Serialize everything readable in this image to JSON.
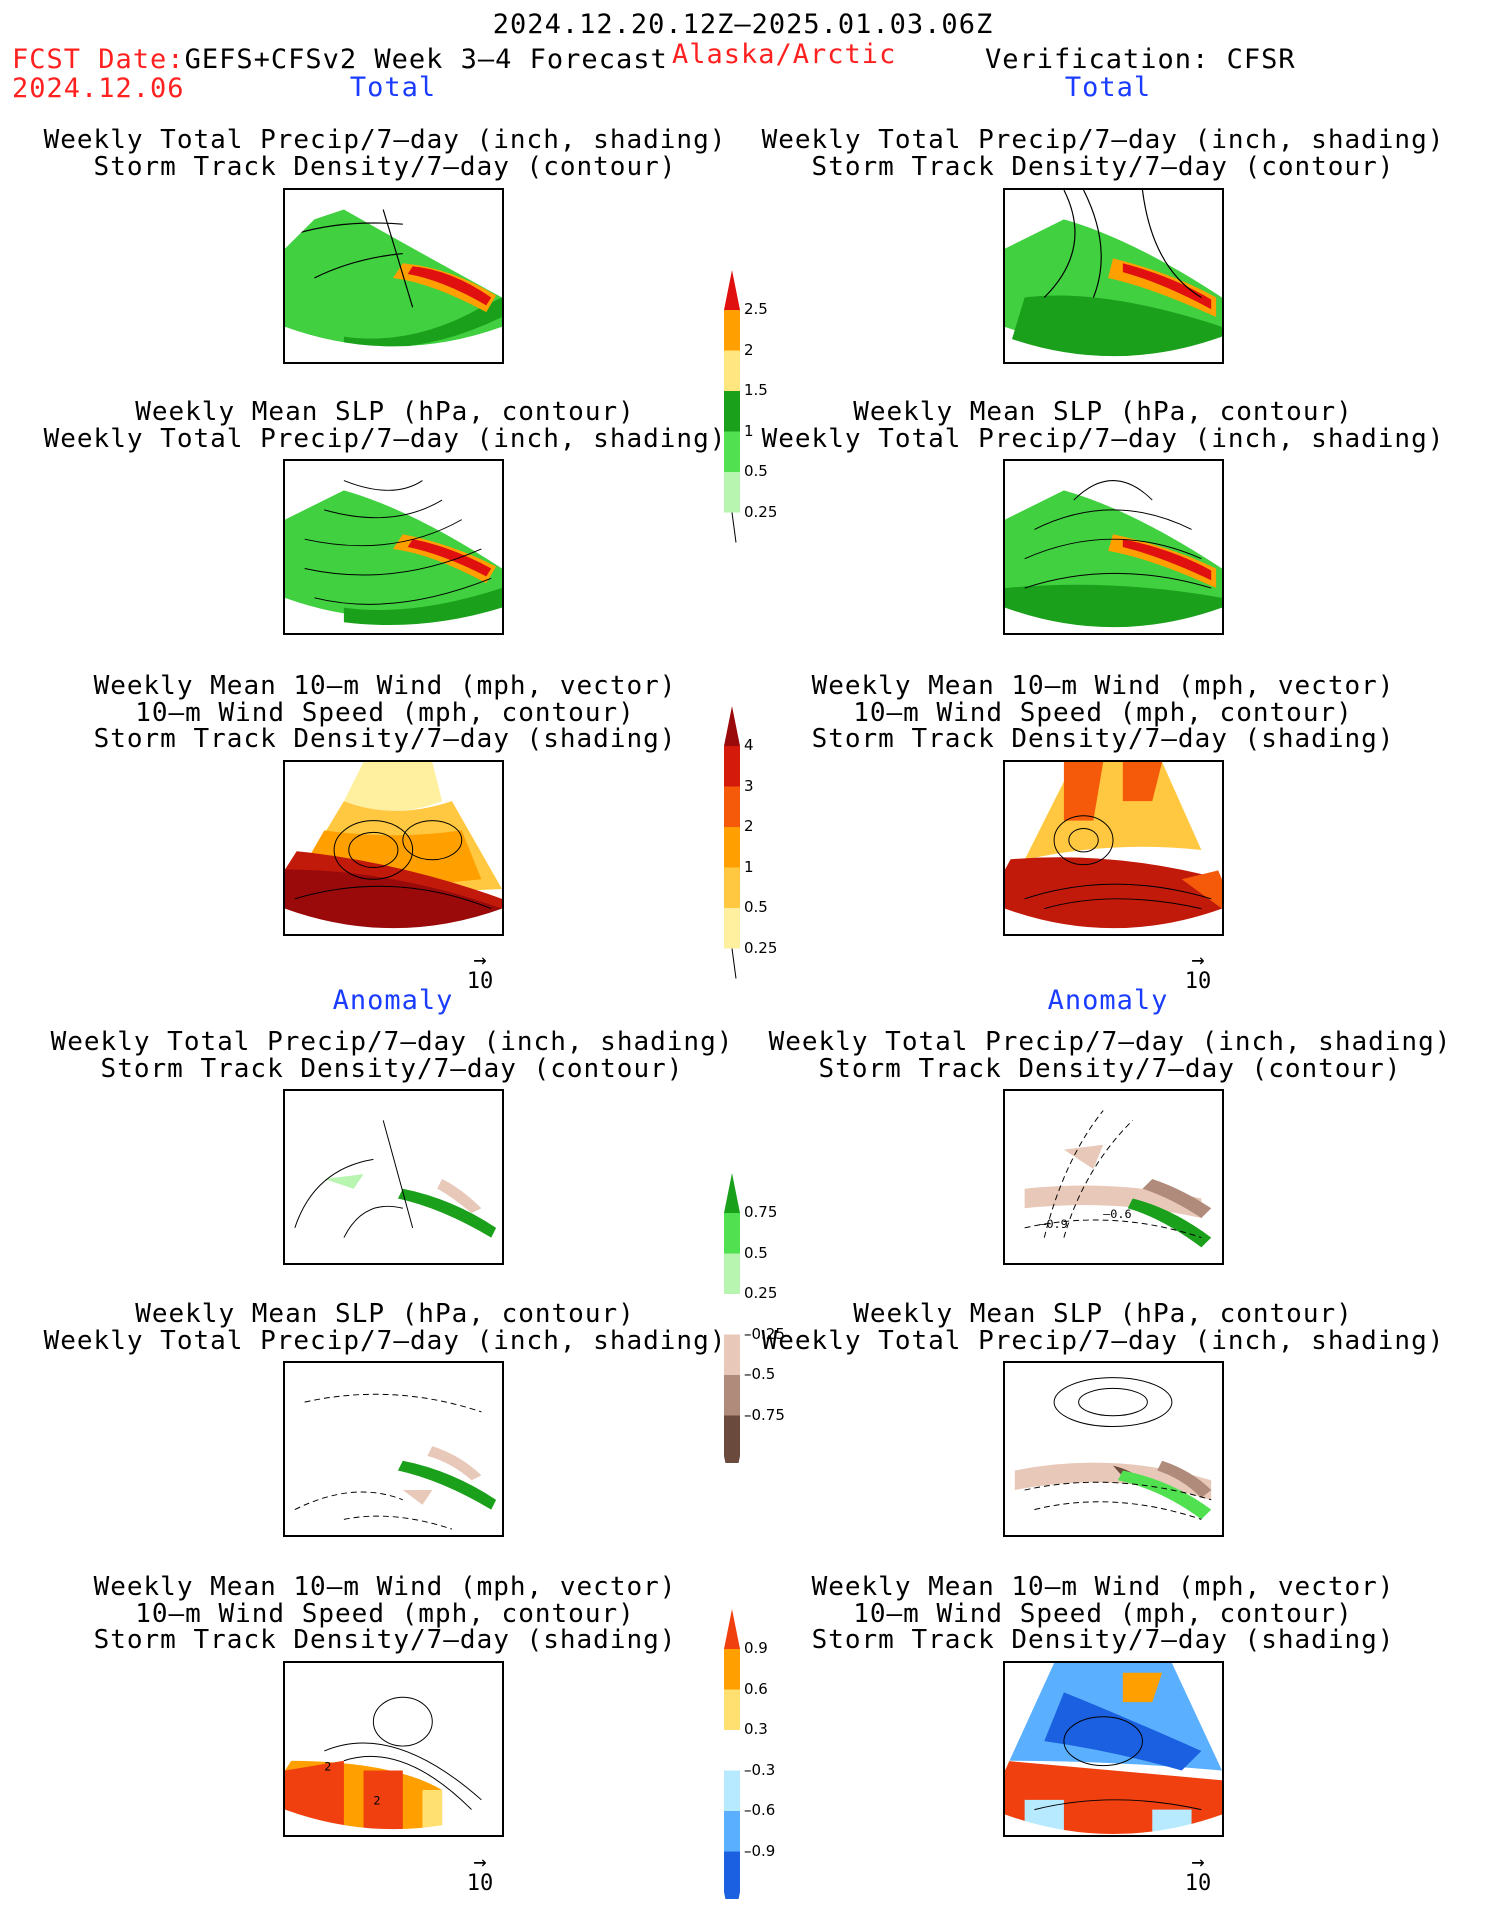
{
  "header": {
    "date_range": "2024.12.20.12Z–2025.01.03.06Z",
    "fcst_prefix": "FCST Date:",
    "fcst_model": "GEFS+CFSv2 Week 3–4 Forecast",
    "fcst_date": "2024.12.06",
    "region": "Alaska/Arctic",
    "verification": "Verification: CFSR"
  },
  "sections": {
    "total": "Total",
    "anomaly": "Anomaly"
  },
  "panels": {
    "precip_storm": [
      "Weekly Total Precip/7–day (inch, shading)",
      "Storm Track Density/7–day (contour)"
    ],
    "slp_precip": [
      "Weekly Mean SLP (hPa, contour)",
      "Weekly Total Precip/7–day (inch, shading)"
    ],
    "wind_storm": [
      "Weekly Mean 10–m Wind (mph, vector)",
      "10–m Wind Speed (mph, contour)",
      "Storm Track Density/7–day (shading)"
    ]
  },
  "vector_ref": "10",
  "contour_labels": {
    "anom_precip_a": "–0.9",
    "anom_precip_b": "–0.6",
    "wind_anom_a": "2",
    "wind_anom_b": "2"
  },
  "colorbars": {
    "precip_total": {
      "labels": [
        "2.5",
        "2",
        "1.5",
        "1",
        "0.5",
        "0.25"
      ],
      "colors": [
        "#e01010",
        "#ffa000",
        "#ffe680",
        "#1aa01a",
        "#50e050",
        "#b8f5b0"
      ]
    },
    "storm_total": {
      "labels": [
        "4",
        "3",
        "2",
        "1",
        "0.5",
        "0.25"
      ],
      "colors": [
        "#9a0a0a",
        "#d41a0a",
        "#f55a0a",
        "#ffa000",
        "#ffc840",
        "#fff0a0"
      ]
    },
    "precip_anom": {
      "labels": [
        "0.75",
        "0.5",
        "0.25",
        "–0.25",
        "–0.5",
        "–0.75"
      ],
      "colors": [
        "#1aa01a",
        "#50e050",
        "#b8f5b0",
        "#ffffff",
        "#e8c8b8",
        "#b08a7a",
        "#6b4a3e"
      ]
    },
    "wind_anom": {
      "labels": [
        "0.9",
        "0.6",
        "0.3",
        "–0.3",
        "–0.6",
        "–0.9"
      ],
      "colors": [
        "#f04010",
        "#ffa000",
        "#ffe070",
        "#ffffff",
        "#b8eaff",
        "#5ab0ff",
        "#1a60e0"
      ]
    }
  }
}
